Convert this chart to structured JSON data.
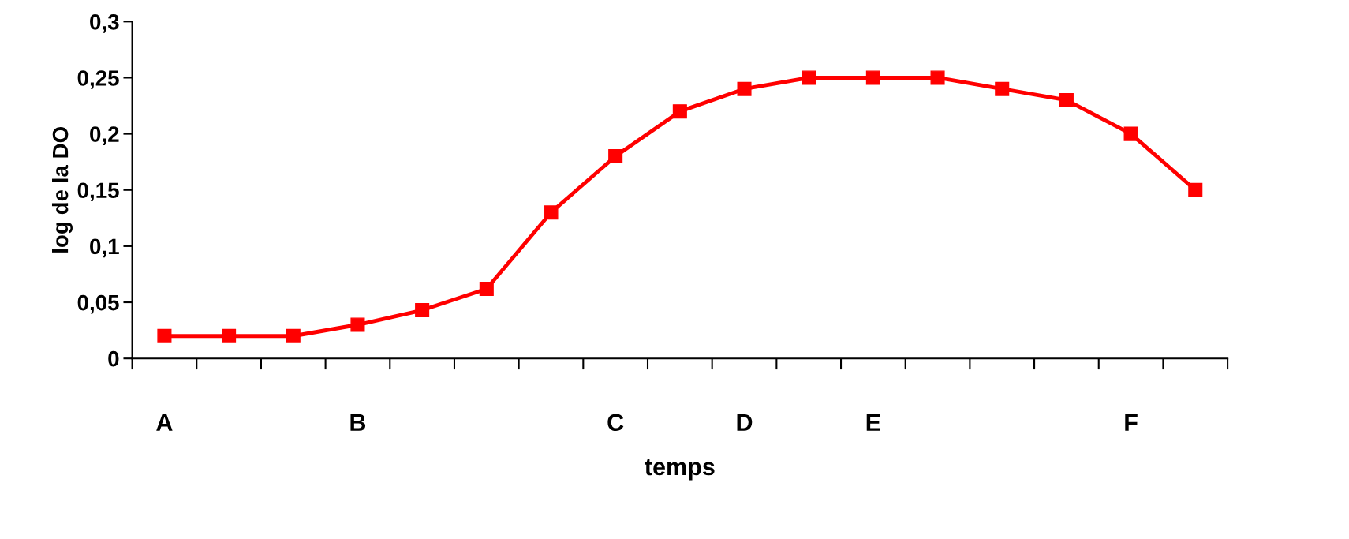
{
  "chart_data": {
    "type": "line",
    "xlabel": "temps",
    "ylabel": "log de la DO",
    "categories": [
      "A",
      null,
      null,
      "B",
      null,
      null,
      null,
      "C",
      null,
      "D",
      null,
      "E",
      null,
      null,
      null,
      "F",
      null
    ],
    "series": [
      {
        "color": "#ff0000",
        "values": [
          0.02,
          0.02,
          0.02,
          0.03,
          0.043,
          0.062,
          0.13,
          0.18,
          0.22,
          0.24,
          0.25,
          0.25,
          0.25,
          0.24,
          0.23,
          0.2,
          0.15
        ]
      }
    ],
    "ylim": [
      0,
      0.3
    ],
    "yticks": [
      0,
      {
        "value": 0.05,
        "label": "0,05"
      },
      {
        "value": 0.1,
        "label": "0,1"
      },
      {
        "value": 0.15,
        "label": "0,15"
      },
      {
        "value": 0.2,
        "label": "0,2"
      },
      {
        "value": 0.25,
        "label": "0,25"
      },
      {
        "value": 0.3,
        "label": "0,3"
      }
    ],
    "marker": "square",
    "line_style": "solid",
    "grid": false
  }
}
